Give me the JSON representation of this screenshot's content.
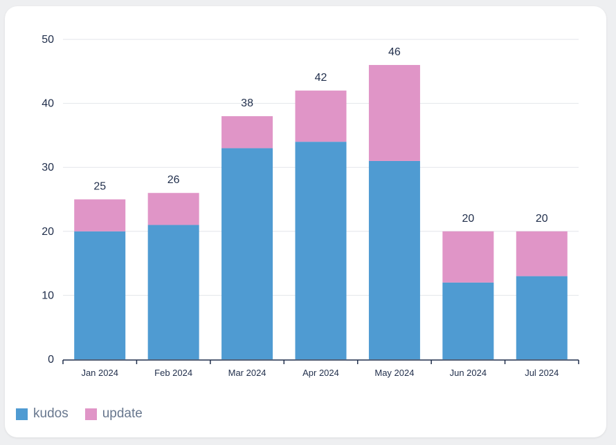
{
  "chart_data": {
    "type": "bar",
    "stacked": true,
    "categories": [
      "Jan 2024",
      "Feb 2024",
      "Mar 2024",
      "Apr 2024",
      "May 2024",
      "Jun 2024",
      "Jul 2024"
    ],
    "series": [
      {
        "name": "kudos",
        "color": "#4f9bd2",
        "values": [
          20,
          21,
          33,
          34,
          31,
          12,
          13
        ]
      },
      {
        "name": "update",
        "color": "#e095c7",
        "values": [
          5,
          5,
          5,
          8,
          15,
          8,
          7
        ]
      }
    ],
    "totals": [
      25,
      26,
      38,
      42,
      46,
      20,
      20
    ],
    "ylim": [
      0,
      50
    ],
    "yticks": [
      0,
      10,
      20,
      30,
      40,
      50
    ],
    "grid": true,
    "legend": "bottom-left",
    "title": "",
    "xlabel": "",
    "ylabel": ""
  },
  "legend": {
    "items": [
      {
        "label": "kudos",
        "color": "#4f9bd2"
      },
      {
        "label": "update",
        "color": "#e095c7"
      }
    ]
  }
}
